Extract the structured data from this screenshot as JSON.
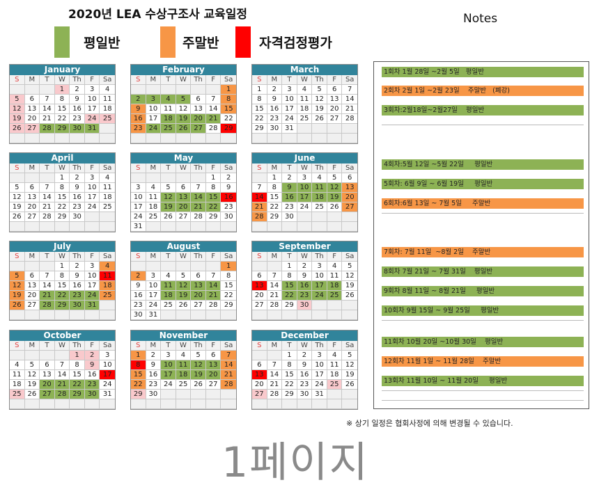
{
  "title": "2020년 LEA 수상구조사 교육일정",
  "colors": {
    "weekday": "#8db255",
    "weekend": "#f79646",
    "exam": "#ff0000",
    "holiday": "#f9c9cc",
    "header": "#31849b"
  },
  "legend": [
    {
      "label": "평일반",
      "color": "#8db255"
    },
    {
      "label": "주말반",
      "color": "#f79646"
    },
    {
      "label": "자격검정평가",
      "color": "#ff0000"
    }
  ],
  "notes_title": "Notes",
  "day_headers": [
    "S",
    "M",
    "T",
    "W",
    "Th",
    "F",
    "Sa"
  ],
  "months": [
    {
      "name": "January",
      "start": 3,
      "days": 31,
      "g": [
        28,
        29,
        30,
        31
      ],
      "o": [],
      "r": [],
      "p": [
        1,
        5,
        12,
        19,
        24,
        25,
        26,
        27
      ]
    },
    {
      "name": "February",
      "start": 6,
      "days": 29,
      "g": [
        2,
        3,
        4,
        5,
        18,
        19,
        20,
        21,
        24,
        25,
        26,
        27
      ],
      "o": [
        1,
        8,
        9,
        15,
        16,
        23
      ],
      "r": [
        29
      ],
      "p": []
    },
    {
      "name": "March",
      "start": 0,
      "days": 31,
      "g": [],
      "o": [],
      "r": [],
      "p": []
    },
    {
      "name": "April",
      "start": 3,
      "days": 30,
      "g": [],
      "o": [],
      "r": [],
      "p": []
    },
    {
      "name": "May",
      "start": 5,
      "days": 31,
      "g": [
        12,
        13,
        14,
        15,
        19,
        20,
        21,
        22
      ],
      "o": [],
      "r": [
        16
      ],
      "p": []
    },
    {
      "name": "June",
      "start": 1,
      "days": 30,
      "g": [
        9,
        10,
        11,
        12,
        16,
        17,
        18,
        19
      ],
      "o": [
        13,
        20,
        21,
        27,
        28
      ],
      "r": [
        14
      ],
      "p": []
    },
    {
      "name": "July",
      "start": 3,
      "days": 31,
      "g": [
        21,
        22,
        23,
        24,
        28,
        29,
        30,
        31
      ],
      "o": [
        4,
        5,
        12,
        18,
        19,
        25,
        26
      ],
      "r": [
        11
      ],
      "p": []
    },
    {
      "name": "August",
      "start": 6,
      "days": 31,
      "g": [
        11,
        12,
        13,
        14,
        18,
        19,
        20,
        21
      ],
      "o": [
        1,
        2
      ],
      "r": [],
      "p": []
    },
    {
      "name": "September",
      "start": 2,
      "days": 30,
      "g": [
        15,
        16,
        17,
        18,
        22,
        23,
        24,
        25
      ],
      "o": [],
      "r": [
        13
      ],
      "p": [
        30
      ]
    },
    {
      "name": "October",
      "start": 4,
      "days": 31,
      "g": [
        20,
        21,
        22,
        23,
        27,
        28,
        29,
        30
      ],
      "o": [],
      "r": [
        17
      ],
      "p": [
        1,
        2,
        9,
        25
      ]
    },
    {
      "name": "November",
      "start": 0,
      "days": 30,
      "g": [
        10,
        11,
        12,
        13,
        17,
        18,
        19,
        20
      ],
      "o": [
        1,
        7,
        14,
        15,
        21,
        22,
        28
      ],
      "r": [
        8
      ],
      "p": [
        29
      ]
    },
    {
      "name": "December",
      "start": 2,
      "days": 31,
      "g": [],
      "o": [],
      "r": [
        13
      ],
      "p": [
        25,
        27
      ]
    }
  ],
  "notes": [
    {
      "text": "1회차 1월 28일 ~2월 5일   평일반",
      "type": "weekday"
    },
    {
      "text": "2회차 2월 1일 ~2월 23일    주말반   (폐강)",
      "type": "weekend"
    },
    {
      "text": "3회차:2월18일~2월27일    평일반",
      "type": "weekday"
    },
    {
      "text": "4회차:5월 12일 ~5월 22일     평일반",
      "type": "weekday"
    },
    {
      "text": "5회차: 6월 9일 ~ 6월 19일     평일반",
      "type": "weekday"
    },
    {
      "text": "6회차:6월 13일 ~ 7월 5일     주말반",
      "type": "weekend"
    },
    {
      "text": "7회차: 7월 11일  ~8월 2일    주말반",
      "type": "weekend"
    },
    {
      "text": "8회차 7월 21일 ~ 7월 31일    평일반",
      "type": "weekday"
    },
    {
      "text": "9회차 8월 11일 ~ 8월 21일     평일반",
      "type": "weekday"
    },
    {
      "text": "10회차 9월 15일 ~ 9월 25일     평일반",
      "type": "weekday"
    },
    {
      "text": "11회차 10월 20일 ~10월 30일    평일반",
      "type": "weekday"
    },
    {
      "text": "12회차 11월 1일 ~ 11월 28일    주말반",
      "type": "weekend"
    },
    {
      "text": "13회차 11월 10일 ~ 11월 20일     평일반",
      "type": "weekday"
    }
  ],
  "watermark": "1페이지",
  "footer": "※ 상기 일정은 협회사정에 의해 변경될 수 있습니다."
}
